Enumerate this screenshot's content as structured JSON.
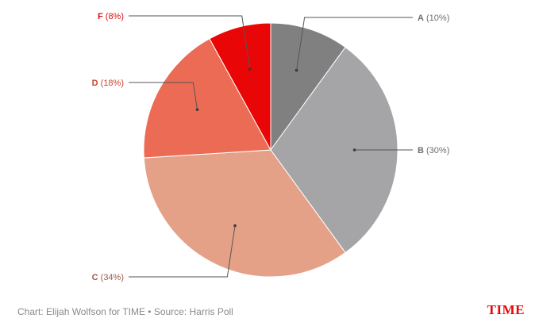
{
  "chart_data": {
    "type": "pie",
    "title": "",
    "slices": [
      {
        "category": "A",
        "value": 10,
        "label": "(10%)",
        "color": "#808080",
        "label_color": "#6f6f6f"
      },
      {
        "category": "B",
        "value": 30,
        "label": "(30%)",
        "color": "#a5a5a8",
        "label_color": "#6f6f6f"
      },
      {
        "category": "C",
        "value": 34,
        "label": "(34%)",
        "color": "#e5a187",
        "label_color": "#a0584a"
      },
      {
        "category": "D",
        "value": 18,
        "label": "(18%)",
        "color": "#ec6b54",
        "label_color": "#d0412e"
      },
      {
        "category": "F",
        "value": 8,
        "label": "(8%)",
        "color": "#e90606",
        "label_color": "#d81010"
      }
    ]
  },
  "footer": {
    "credit": "Chart: Elijah Wolfson for TIME • Source: Harris Poll",
    "logo": "TIME"
  }
}
